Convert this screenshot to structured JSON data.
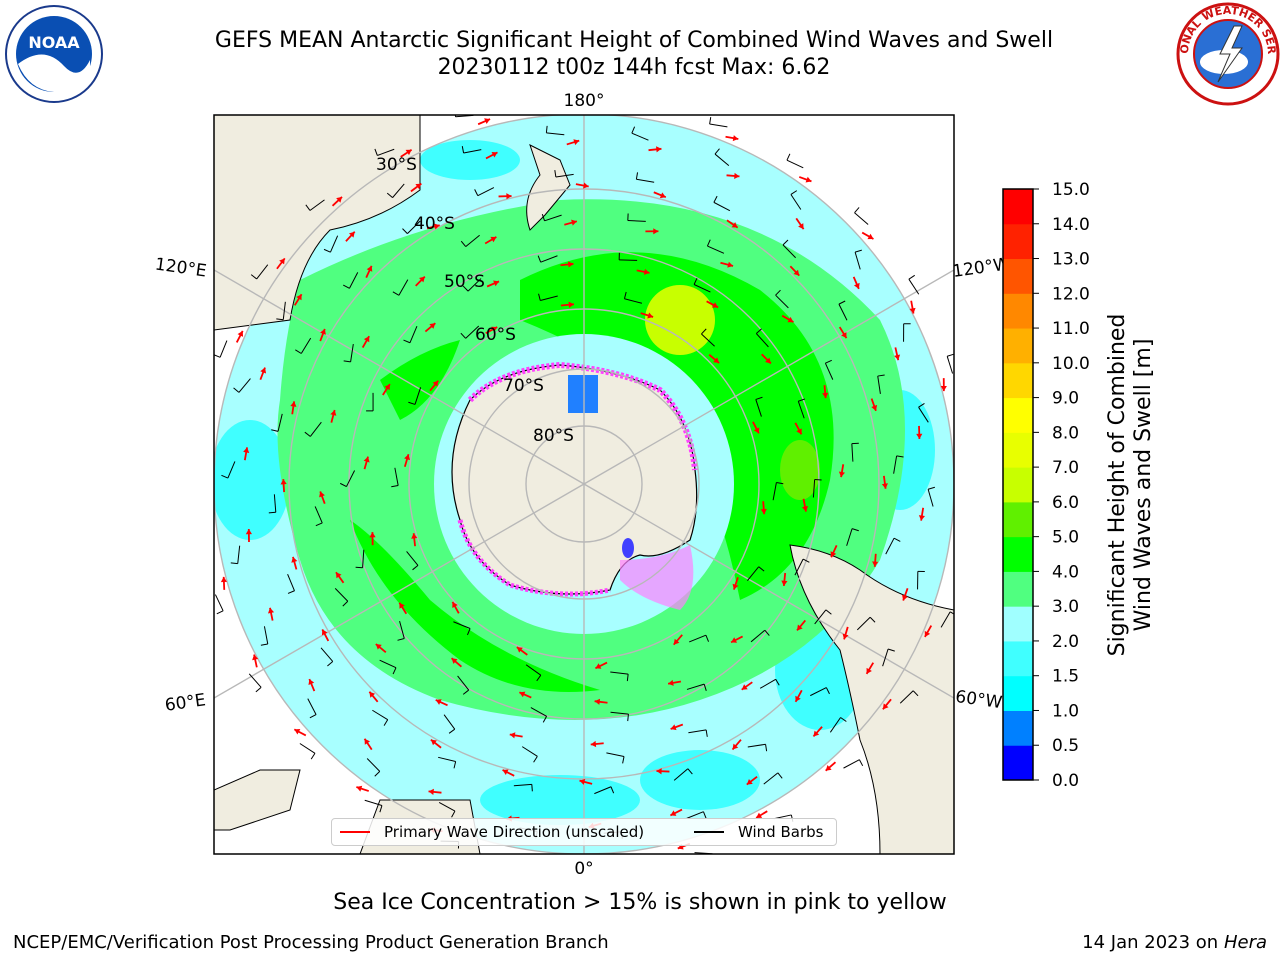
{
  "header": {
    "title_line1": "GEFS MEAN Antarctic Significant Height of Combined Wind Waves and Swell",
    "title_line2": "20230112 t00z 144h fcst   Max: 6.62"
  },
  "logos": {
    "left": {
      "icon": "noaa-logo-icon",
      "text": "NOAA"
    },
    "right": {
      "icon": "nws-logo-icon",
      "text": "NATIONAL WEATHER SERVICE"
    }
  },
  "map": {
    "projection": "south-polar-stereographic",
    "longitude_labels": [
      "180°",
      "120°E",
      "120°W",
      "60°E",
      "60°W",
      "0°"
    ],
    "latitude_labels": [
      "30°S",
      "40°S",
      "50°S",
      "60°S",
      "70°S",
      "80°S"
    ],
    "field": "Significant Height of Combined Wind Waves and Swell",
    "max_value": 6.62,
    "sea_ice_note": "Sea Ice Concentration > 15% is shown in pink to yellow"
  },
  "colorbar": {
    "label_line1": "Significant Height of Combined",
    "label_line2": "Wind Waves and Swell [m]",
    "ticks": [
      "0.0",
      "0.5",
      "1.0",
      "1.5",
      "2.0",
      "3.0",
      "4.0",
      "5.0",
      "6.0",
      "7.0",
      "8.0",
      "9.0",
      "10.0",
      "11.0",
      "12.0",
      "13.0",
      "14.0",
      "15.0"
    ],
    "colors": [
      "#0000ff",
      "#0080ff",
      "#00ffff",
      "#40ffff",
      "#a0ffff",
      "#50ff80",
      "#00ff00",
      "#60f000",
      "#c8ff00",
      "#e8ff00",
      "#ffff00",
      "#ffd700",
      "#ffb000",
      "#ff8800",
      "#ff5500",
      "#ff2200",
      "#ff0000"
    ]
  },
  "legend": {
    "wave_label": "Primary Wave Direction (unscaled)",
    "wave_color": "#ff0000",
    "barb_label": "Wind Barbs",
    "barb_color": "#000000"
  },
  "footer": {
    "left": "NCEP/EMC/Verification Post Processing Product Generation Branch",
    "right_date": "14 Jan 2023 on ",
    "right_host": "Hera"
  }
}
